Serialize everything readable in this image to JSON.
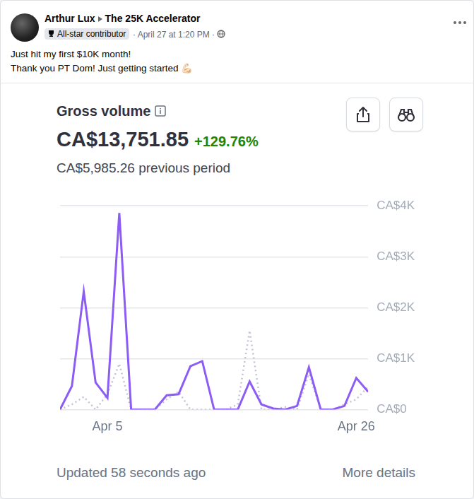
{
  "post": {
    "author": "Arthur Lux",
    "group": "The 25K Accelerator",
    "badge": "All-star contributor",
    "time": "· April 27 at 1:20 PM ·",
    "text": [
      "Just hit my first $10K month!",
      "Thank you PT Dom! Just getting started 💪🏻"
    ]
  },
  "card": {
    "title": "Gross volume",
    "amount": "CA$13,751.85",
    "change": "+129.76%",
    "previous": "CA$5,985.26 previous period",
    "updated": "Updated 58 seconds ago",
    "link": "More details"
  },
  "chart_data": {
    "type": "line",
    "categories": [
      null,
      null,
      null,
      null,
      "Apr 5",
      null,
      null,
      null,
      null,
      null,
      null,
      null,
      null,
      null,
      null,
      null,
      null,
      null,
      null,
      null,
      null,
      null,
      null,
      null,
      null,
      "Apr 26",
      null
    ],
    "series": [
      {
        "color": "#8c5cf5",
        "line_style": "solid",
        "values": [
          0,
          460,
          2320,
          530,
          230,
          3860,
          0,
          0,
          0,
          280,
          300,
          850,
          950,
          0,
          0,
          0,
          550,
          100,
          20,
          0,
          70,
          830,
          0,
          0,
          70,
          620,
          350
        ]
      },
      {
        "color": "#c4c2d4",
        "line_style": "dotted",
        "values": [
          0,
          100,
          250,
          0,
          300,
          900,
          0,
          0,
          0,
          200,
          350,
          0,
          0,
          0,
          0,
          100,
          1550,
          0,
          0,
          50,
          0,
          700,
          0,
          0,
          100,
          200,
          450
        ]
      }
    ],
    "ylim": [
      0,
      4000
    ],
    "yticks": [
      {
        "value": 0,
        "label": "CA$0"
      },
      {
        "value": 1000,
        "label": "CA$1K"
      },
      {
        "value": 2000,
        "label": "CA$2K"
      },
      {
        "value": 3000,
        "label": "CA$3K"
      },
      {
        "value": 4000,
        "label": "CA$4K"
      }
    ],
    "grid": true
  }
}
